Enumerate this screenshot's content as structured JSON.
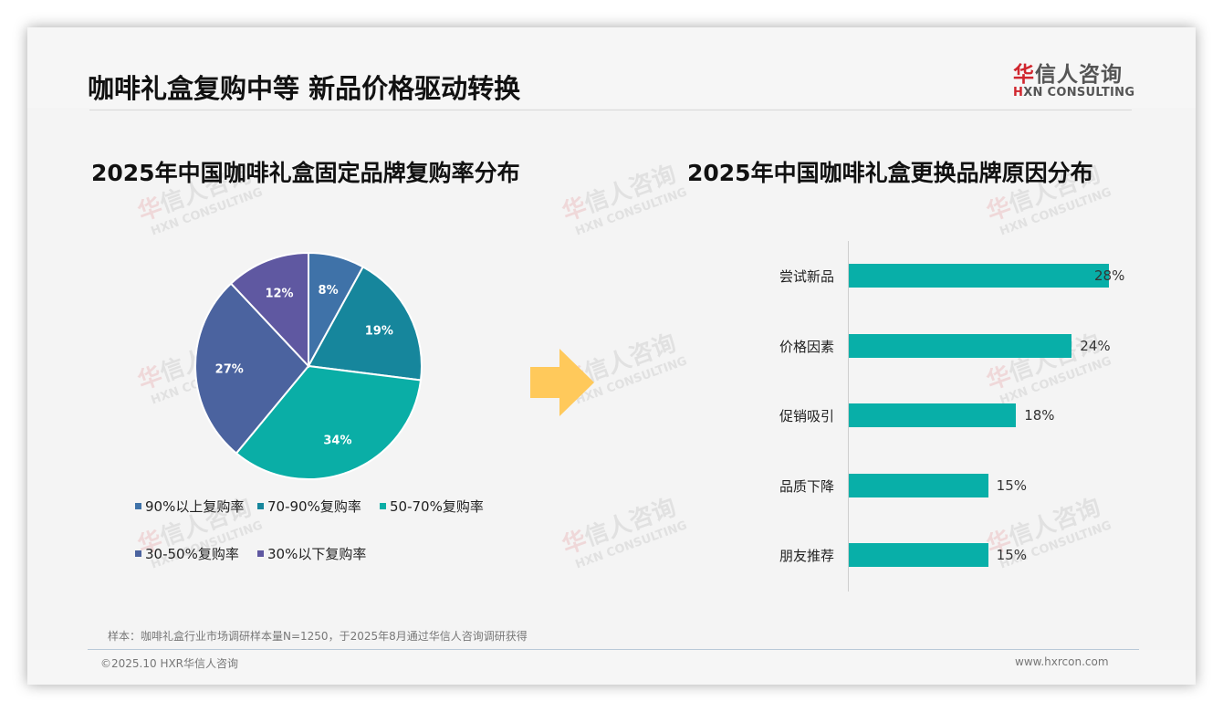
{
  "header": {
    "title": "咖啡礼盒复购中等 新品价格驱动转换",
    "logo": {
      "cn_highlight": "华",
      "cn_rest": "信人咨询",
      "en_highlight": "H",
      "en_rest": "XN CONSULTING"
    }
  },
  "watermark": {
    "cn_highlight": "华",
    "cn_rest": "信人咨询",
    "en": "HXN CONSULTING"
  },
  "left_panel": {
    "title": "2025年中国咖啡礼盒固定品牌复购率分布",
    "legend": [
      {
        "label": "90%以上复购率",
        "color": "#3f72a8"
      },
      {
        "label": "70-90%复购率",
        "color": "#16869c"
      },
      {
        "label": "50-70%复购率",
        "color": "#0aaea6"
      },
      {
        "label": "30-50%复购率",
        "color": "#4b639f"
      },
      {
        "label": "30%以下复购率",
        "color": "#5f58a1"
      }
    ]
  },
  "arrow": {
    "icon": "right-arrow-icon",
    "color": "#ffc95b"
  },
  "right_panel": {
    "title": "2025年中国咖啡礼盒更换品牌原因分布"
  },
  "chart_data": [
    {
      "type": "pie",
      "title": "2025年中国咖啡礼盒固定品牌复购率分布",
      "categories": [
        "90%以上复购率",
        "70-90%复购率",
        "50-70%复购率",
        "30-50%复购率",
        "30%以下复购率"
      ],
      "values": [
        8,
        19,
        34,
        27,
        12
      ],
      "labels": [
        "8%",
        "19%",
        "34%",
        "27%",
        "12%"
      ],
      "colors": [
        "#3f72a8",
        "#16869c",
        "#0aaea6",
        "#4b639f",
        "#5f58a1"
      ],
      "unit": "%",
      "start_angle": "12 o'clock, clockwise",
      "legend_position": "bottom"
    },
    {
      "type": "bar",
      "orientation": "horizontal",
      "title": "2025年中国咖啡礼盒更换品牌原因分布",
      "categories": [
        "尝试新品",
        "价格因素",
        "促销吸引",
        "品质下降",
        "朋友推荐"
      ],
      "values": [
        28,
        24,
        18,
        15,
        15
      ],
      "labels": [
        "28%",
        "24%",
        "18%",
        "15%",
        "15%"
      ],
      "color": "#08afa8",
      "unit": "%",
      "xlabel": "",
      "ylabel": "",
      "grid": false
    }
  ],
  "footer": {
    "note": "样本：咖啡礼盒行业市场调研样本量N=1250，于2025年8月通过华信人咨询调研获得",
    "copyright": "©2025.10 HXR华信人咨询",
    "website": "www.hxrcon.com"
  }
}
